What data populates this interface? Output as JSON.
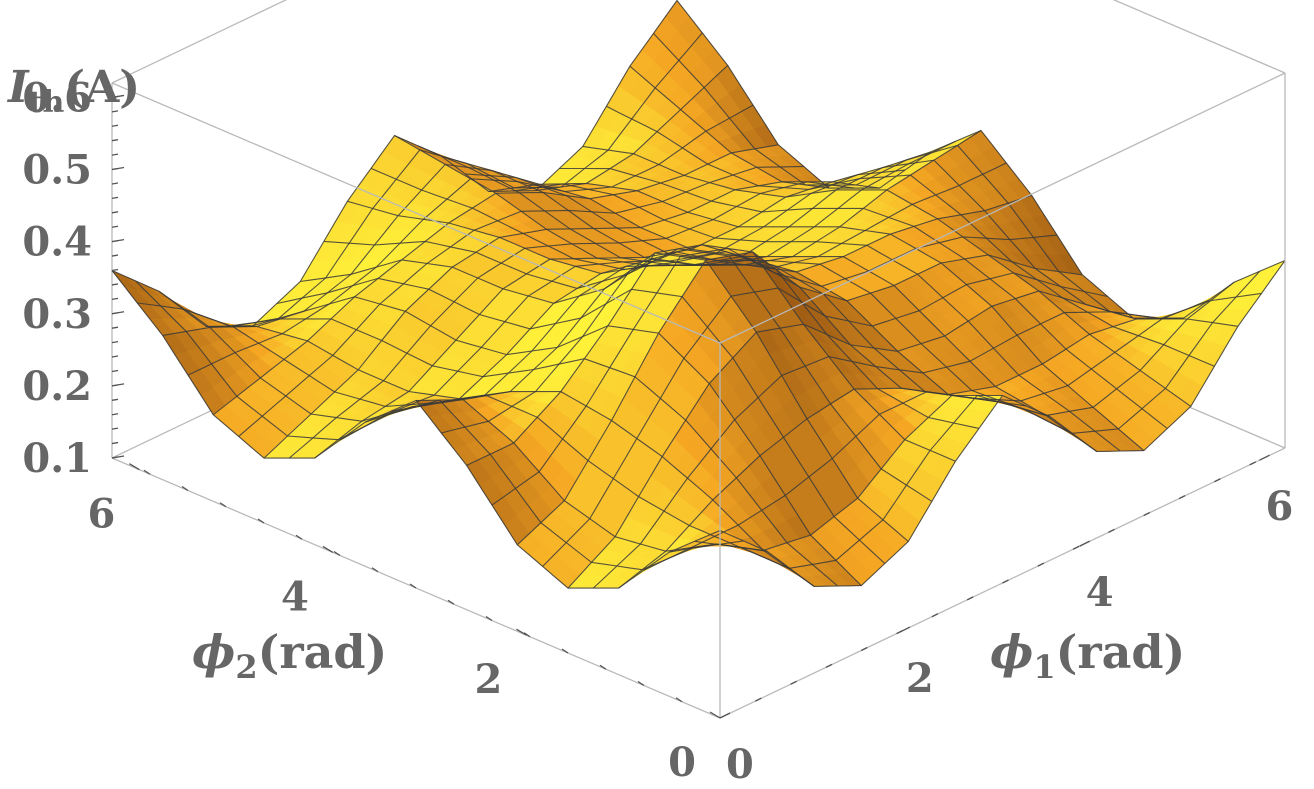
{
  "chart_data": {
    "type": "surface3d",
    "title": "",
    "zlabel": {
      "main": "I",
      "sub": "th",
      "unit": "(A)"
    },
    "xlabel": {
      "symbol": "ϕ",
      "sub": "1",
      "unit": "(rad)"
    },
    "ylabel": {
      "symbol": "ϕ",
      "sub": "2",
      "unit": "(rad)"
    },
    "xlim": [
      0,
      6.2832
    ],
    "ylim": [
      0,
      6.2832
    ],
    "zlim": [
      0.1,
      0.62
    ],
    "x_ticks": [
      "0",
      "2",
      "4",
      "6"
    ],
    "y_ticks": [
      "0",
      "2",
      "4",
      "6"
    ],
    "z_ticks": [
      "0.1",
      "0.2",
      "0.3",
      "0.4",
      "0.5",
      "0.6"
    ],
    "x_tick_values": [
      0,
      2,
      4,
      6
    ],
    "y_tick_values": [
      0,
      2,
      4,
      6
    ],
    "z_tick_values": [
      0.1,
      0.2,
      0.3,
      0.4,
      0.5,
      0.6
    ],
    "grid_x": [
      0,
      0.524,
      1.047,
      1.571,
      2.094,
      2.618,
      3.142,
      3.665,
      4.189,
      4.712,
      5.236,
      5.76,
      6.283
    ],
    "grid_y": [
      0,
      0.524,
      1.047,
      1.571,
      2.094,
      2.618,
      3.142,
      3.665,
      4.189,
      4.712,
      5.236,
      5.76,
      6.283
    ],
    "z_values": [
      [
        0.36,
        0.3,
        0.22,
        0.19,
        0.22,
        0.3,
        0.36,
        0.3,
        0.22,
        0.19,
        0.22,
        0.3,
        0.36
      ],
      [
        0.3,
        0.28,
        0.24,
        0.23,
        0.25,
        0.3,
        0.33,
        0.29,
        0.24,
        0.22,
        0.24,
        0.28,
        0.3
      ],
      [
        0.22,
        0.24,
        0.28,
        0.31,
        0.33,
        0.34,
        0.31,
        0.27,
        0.25,
        0.25,
        0.26,
        0.25,
        0.22
      ],
      [
        0.19,
        0.23,
        0.31,
        0.38,
        0.42,
        0.4,
        0.34,
        0.3,
        0.29,
        0.3,
        0.29,
        0.24,
        0.19
      ],
      [
        0.22,
        0.25,
        0.33,
        0.42,
        0.49,
        0.47,
        0.39,
        0.34,
        0.33,
        0.33,
        0.31,
        0.26,
        0.22
      ],
      [
        0.3,
        0.3,
        0.34,
        0.4,
        0.47,
        0.45,
        0.4,
        0.35,
        0.34,
        0.34,
        0.33,
        0.31,
        0.3
      ],
      [
        0.36,
        0.33,
        0.31,
        0.34,
        0.39,
        0.4,
        0.36,
        0.33,
        0.31,
        0.32,
        0.34,
        0.35,
        0.36
      ],
      [
        0.3,
        0.29,
        0.27,
        0.3,
        0.34,
        0.35,
        0.33,
        0.3,
        0.28,
        0.29,
        0.31,
        0.31,
        0.3
      ],
      [
        0.22,
        0.24,
        0.25,
        0.29,
        0.33,
        0.34,
        0.31,
        0.28,
        0.26,
        0.26,
        0.27,
        0.26,
        0.22
      ],
      [
        0.19,
        0.22,
        0.25,
        0.3,
        0.33,
        0.34,
        0.32,
        0.29,
        0.26,
        0.25,
        0.25,
        0.23,
        0.19
      ],
      [
        0.22,
        0.24,
        0.26,
        0.29,
        0.31,
        0.33,
        0.34,
        0.31,
        0.27,
        0.25,
        0.24,
        0.24,
        0.22
      ],
      [
        0.3,
        0.28,
        0.25,
        0.24,
        0.26,
        0.31,
        0.35,
        0.31,
        0.26,
        0.23,
        0.24,
        0.27,
        0.3
      ],
      [
        0.36,
        0.3,
        0.22,
        0.19,
        0.22,
        0.3,
        0.36,
        0.3,
        0.22,
        0.19,
        0.22,
        0.3,
        0.36
      ]
    ],
    "z_values_note_axes": "rows index phi2 (grid_y), columns index phi1 (grid_x)",
    "surface_color": "#f5a623",
    "highlight_color": "#fff23a",
    "shadow_color": "#8a4a10",
    "mesh_color": "#3a3a3a",
    "box_color": "#b9b9b9",
    "label_color": "#666666"
  }
}
